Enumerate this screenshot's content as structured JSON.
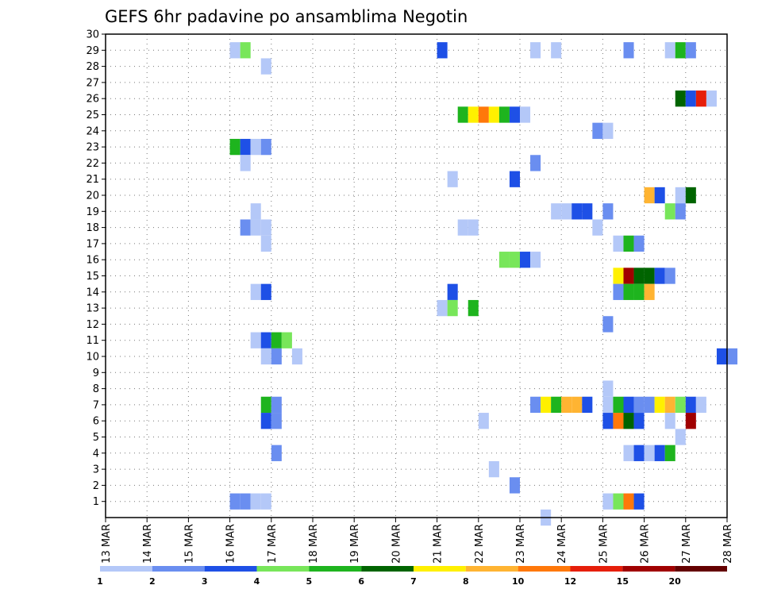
{
  "chart_data": {
    "type": "heatmap",
    "title": "GEFS 6hr padavine po ansamblima Negotin",
    "xlabel": "",
    "ylabel": "",
    "x_ticks": [
      "13 MAR",
      "14 MAR",
      "15 MAR",
      "16 MAR",
      "17 MAR",
      "18 MAR",
      "19 MAR",
      "20 MAR",
      "21 MAR",
      "22 MAR",
      "23 MAR",
      "24 MAR",
      "25 MAR",
      "26 MAR",
      "27 MAR",
      "28 MAR"
    ],
    "y_ticks": [
      "1",
      "2",
      "3",
      "4",
      "5",
      "6",
      "7",
      "8",
      "9",
      "10",
      "11",
      "12",
      "13",
      "14",
      "15",
      "16",
      "17",
      "18",
      "19",
      "20",
      "21",
      "22",
      "23",
      "24",
      "25",
      "26",
      "27",
      "28",
      "29",
      "30"
    ],
    "ylim": [
      0,
      30
    ],
    "grid": true,
    "colorbar": {
      "labels": [
        "1",
        "2",
        "3",
        "4",
        "5",
        "6",
        "7",
        "8",
        "10",
        "12",
        "15",
        "20"
      ],
      "colors": [
        "#b4c8f8",
        "#6a8ef0",
        "#1e50e6",
        "#78e65a",
        "#1eb41e",
        "#006400",
        "#fff000",
        "#ffb432",
        "#ff780a",
        "#e61e0a",
        "#a00000",
        "#640000"
      ]
    },
    "cells_note": "each cell: [day_index from 13 MAR, member, color_index]",
    "cells": [
      [
        3.0,
        29,
        0
      ],
      [
        3.25,
        29,
        3
      ],
      [
        3.75,
        28,
        0
      ],
      [
        3.0,
        23,
        4
      ],
      [
        3.25,
        23,
        2
      ],
      [
        3.5,
        23,
        0
      ],
      [
        3.75,
        23,
        1
      ],
      [
        3.25,
        22,
        0
      ],
      [
        3.5,
        19,
        0
      ],
      [
        3.25,
        18,
        1
      ],
      [
        3.5,
        18,
        0
      ],
      [
        3.75,
        18,
        0
      ],
      [
        3.75,
        17,
        0
      ],
      [
        3.5,
        14,
        0
      ],
      [
        3.75,
        14,
        2
      ],
      [
        3.5,
        11,
        0
      ],
      [
        3.75,
        11,
        2
      ],
      [
        4.0,
        11,
        4
      ],
      [
        4.25,
        11,
        3
      ],
      [
        3.75,
        10,
        0
      ],
      [
        4.0,
        10,
        1
      ],
      [
        4.5,
        10,
        0
      ],
      [
        3.75,
        7,
        4
      ],
      [
        4.0,
        7,
        1
      ],
      [
        3.75,
        6,
        2
      ],
      [
        4.0,
        6,
        1
      ],
      [
        4.0,
        4,
        1
      ],
      [
        3.0,
        1,
        1
      ],
      [
        3.25,
        1,
        1
      ],
      [
        3.5,
        1,
        0
      ],
      [
        3.75,
        1,
        0
      ],
      [
        8.0,
        29,
        2
      ],
      [
        8.5,
        25,
        4
      ],
      [
        8.75,
        25,
        6
      ],
      [
        9.0,
        25,
        8
      ],
      [
        9.25,
        25,
        6
      ],
      [
        9.5,
        25,
        4
      ],
      [
        9.75,
        25,
        2
      ],
      [
        10.0,
        25,
        0
      ],
      [
        8.25,
        21,
        0
      ],
      [
        8.5,
        18,
        0
      ],
      [
        8.75,
        18,
        0
      ],
      [
        8.25,
        14,
        2
      ],
      [
        8.0,
        13,
        0
      ],
      [
        8.25,
        13,
        3
      ],
      [
        8.75,
        13,
        4
      ],
      [
        9.0,
        6,
        0
      ],
      [
        9.25,
        3,
        0
      ],
      [
        9.75,
        21,
        2
      ],
      [
        9.5,
        16,
        3
      ],
      [
        9.75,
        16,
        3
      ],
      [
        10.0,
        16,
        2
      ],
      [
        10.25,
        16,
        0
      ],
      [
        9.75,
        2,
        1
      ],
      [
        10.5,
        0,
        0
      ],
      [
        10.25,
        29,
        0
      ],
      [
        10.75,
        29,
        0
      ],
      [
        10.25,
        22,
        1
      ],
      [
        10.75,
        19,
        0
      ],
      [
        11.0,
        19,
        0
      ],
      [
        11.25,
        19,
        2
      ],
      [
        11.5,
        19,
        2
      ],
      [
        10.25,
        7,
        1
      ],
      [
        10.5,
        7,
        6
      ],
      [
        10.75,
        7,
        4
      ],
      [
        11.0,
        7,
        7
      ],
      [
        11.25,
        7,
        7
      ],
      [
        11.5,
        7,
        2
      ],
      [
        11.75,
        18,
        0
      ],
      [
        11.75,
        24,
        1
      ],
      [
        12.0,
        24,
        0
      ],
      [
        12.0,
        19,
        1
      ],
      [
        12.25,
        17,
        0
      ],
      [
        12.5,
        17,
        4
      ],
      [
        12.75,
        17,
        1
      ],
      [
        12.25,
        15,
        6
      ],
      [
        12.5,
        15,
        10
      ],
      [
        12.75,
        15,
        5
      ],
      [
        13.0,
        15,
        5
      ],
      [
        13.25,
        15,
        2
      ],
      [
        13.5,
        15,
        1
      ],
      [
        12.25,
        14,
        1
      ],
      [
        12.5,
        14,
        4
      ],
      [
        12.75,
        14,
        4
      ],
      [
        13.0,
        14,
        7
      ],
      [
        12.0,
        12,
        1
      ],
      [
        12.0,
        8,
        0
      ],
      [
        12.0,
        7,
        0
      ],
      [
        12.25,
        7,
        4
      ],
      [
        12.5,
        7,
        2
      ],
      [
        12.75,
        7,
        1
      ],
      [
        13.0,
        7,
        1
      ],
      [
        13.25,
        7,
        6
      ],
      [
        13.5,
        7,
        7
      ],
      [
        13.75,
        7,
        3
      ],
      [
        14.0,
        7,
        2
      ],
      [
        14.25,
        7,
        0
      ],
      [
        12.0,
        6,
        2
      ],
      [
        12.25,
        6,
        8
      ],
      [
        12.5,
        6,
        5
      ],
      [
        12.75,
        6,
        2
      ],
      [
        13.5,
        6,
        0
      ],
      [
        14.0,
        6,
        10
      ],
      [
        13.75,
        5,
        0
      ],
      [
        12.5,
        4,
        0
      ],
      [
        12.75,
        4,
        2
      ],
      [
        13.0,
        4,
        0
      ],
      [
        13.25,
        4,
        2
      ],
      [
        13.5,
        4,
        4
      ],
      [
        12.0,
        1,
        0
      ],
      [
        12.25,
        1,
        3
      ],
      [
        12.5,
        1,
        8
      ],
      [
        12.75,
        1,
        2
      ],
      [
        12.5,
        29,
        1
      ],
      [
        13.5,
        29,
        0
      ],
      [
        13.75,
        29,
        4
      ],
      [
        14.0,
        29,
        1
      ],
      [
        13.75,
        26,
        5
      ],
      [
        14.0,
        26,
        2
      ],
      [
        14.25,
        26,
        9
      ],
      [
        14.5,
        26,
        0
      ],
      [
        13.0,
        20,
        7
      ],
      [
        13.25,
        20,
        2
      ],
      [
        13.75,
        20,
        0
      ],
      [
        14.0,
        20,
        5
      ],
      [
        13.5,
        19,
        3
      ],
      [
        13.75,
        19,
        1
      ],
      [
        14.75,
        10,
        2
      ],
      [
        15.0,
        10,
        1
      ]
    ]
  }
}
